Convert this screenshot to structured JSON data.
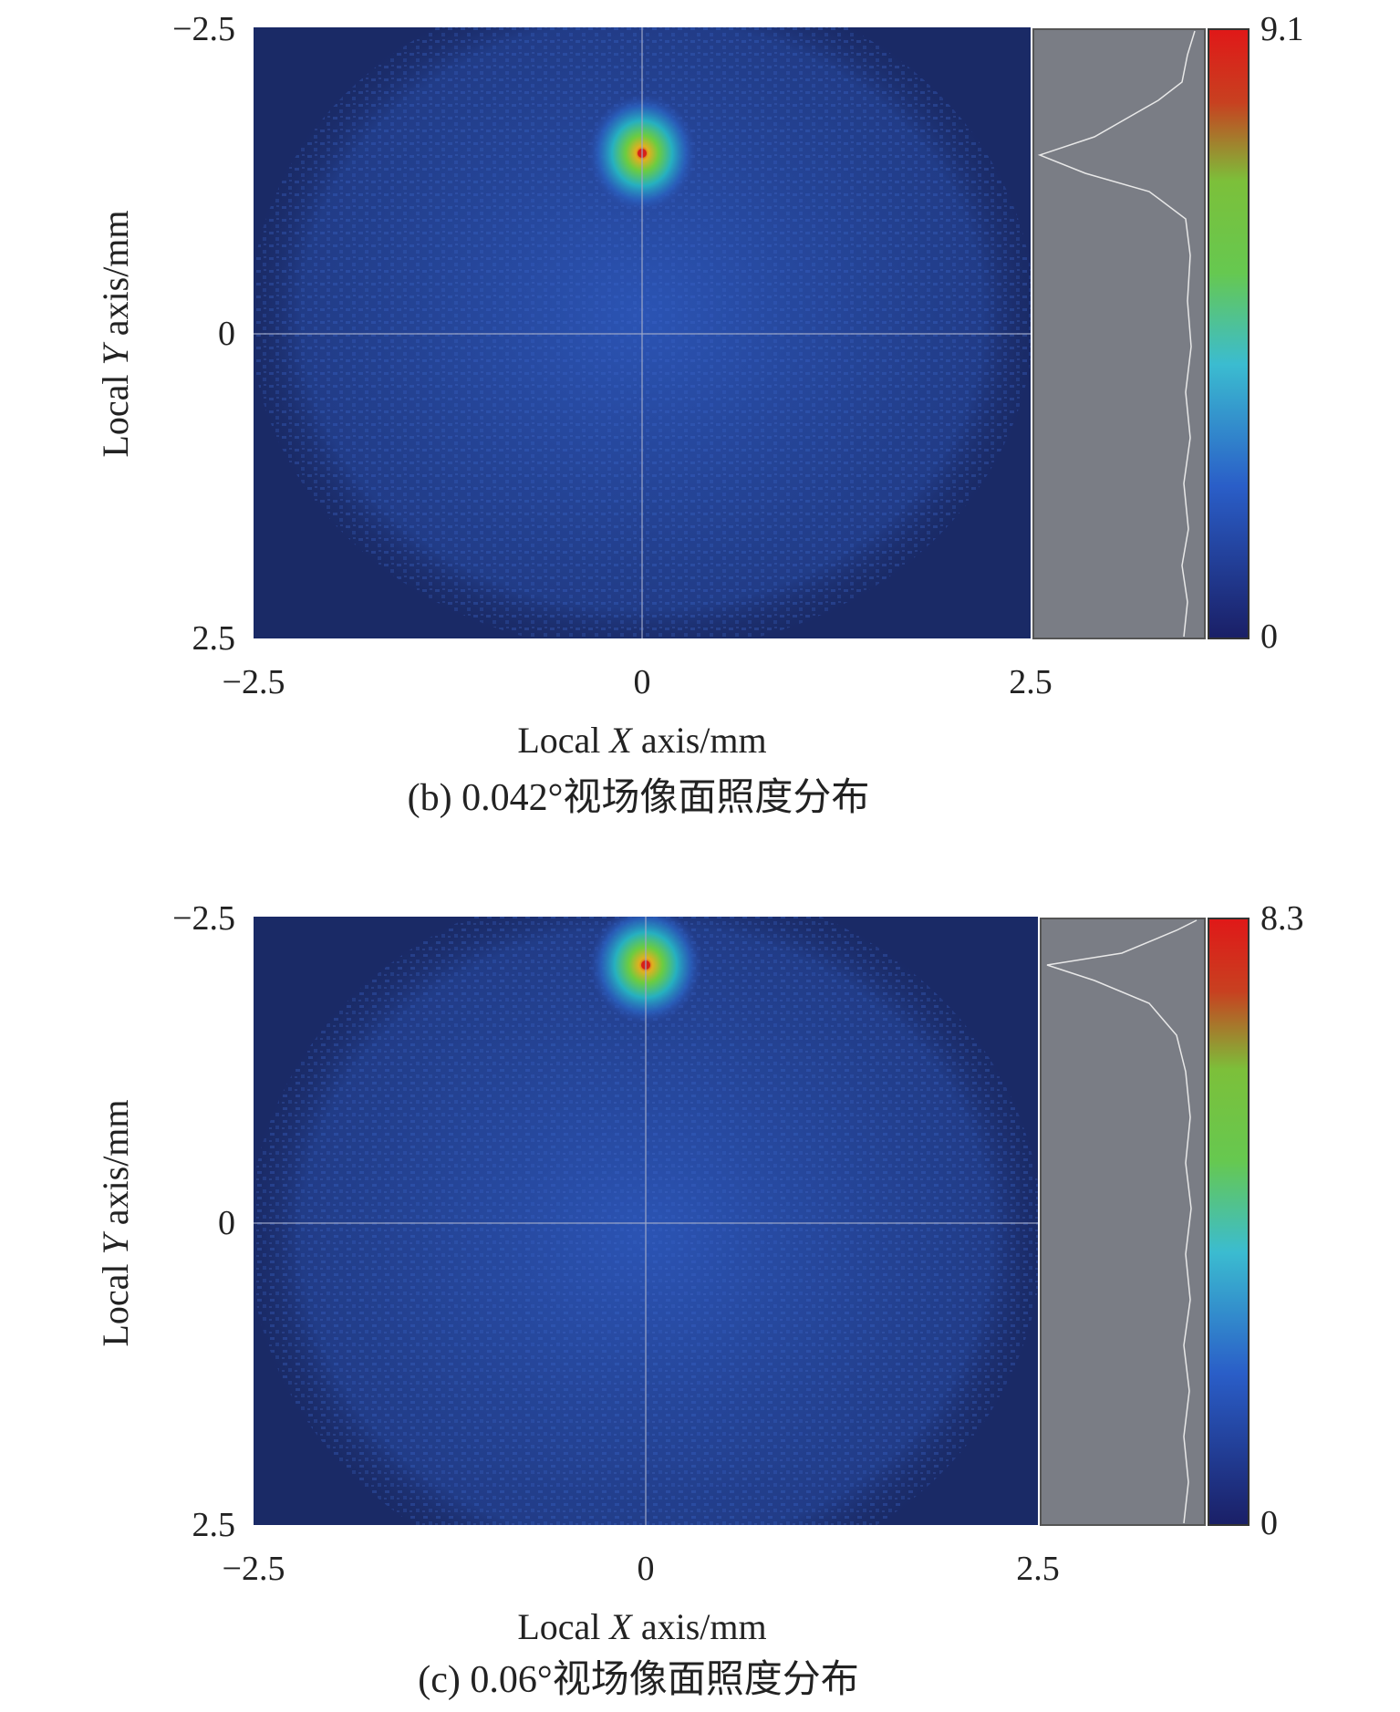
{
  "chart_data": [
    {
      "type": "heatmap",
      "panel": "b",
      "caption": "(b) 0.042°视场像面照度分布",
      "xlabel_parts": [
        "Local ",
        "X",
        " axis/mm"
      ],
      "ylabel_parts": [
        "Local ",
        "Y",
        " axis/mm"
      ],
      "x_ticks": [
        "−2.5",
        "0",
        "2.5"
      ],
      "y_ticks": [
        "−2.5",
        "0",
        "2.5"
      ],
      "xlim": [
        -2.5,
        2.5
      ],
      "ylim": [
        -2.5,
        2.5
      ],
      "colorbar": {
        "min_label": "0",
        "max_label": "9.1",
        "min": 0,
        "max": 9.1
      },
      "peak": {
        "x": 0.0,
        "y": -1.5,
        "value": 9.1
      },
      "crosshair": {
        "x": 0.0,
        "y": 0.0
      },
      "colors": {
        "background": "#1a2a66",
        "profile_panel": "#7a7d85",
        "profile_line": "#e8e8e8"
      }
    },
    {
      "type": "heatmap",
      "panel": "c",
      "caption": "(c) 0.06°视场像面照度分布",
      "xlabel_parts": [
        "Local ",
        "X",
        " axis/mm"
      ],
      "ylabel_parts": [
        "Local ",
        "Y",
        " axis/mm"
      ],
      "x_ticks": [
        "−2.5",
        "0",
        "2.5"
      ],
      "y_ticks": [
        "−2.5",
        "0",
        "2.5"
      ],
      "xlim": [
        -2.5,
        2.5
      ],
      "ylim": [
        -2.5,
        2.5
      ],
      "colorbar": {
        "min_label": "0",
        "max_label": "8.3",
        "min": 0,
        "max": 8.3
      },
      "peak": {
        "x": 0.0,
        "y": -2.2,
        "value": 8.3
      },
      "crosshair": {
        "x": 0.0,
        "y": 0.0
      },
      "colors": {
        "background": "#1a2a66",
        "profile_panel": "#7a7d85",
        "profile_line": "#e8e8e8"
      }
    }
  ]
}
